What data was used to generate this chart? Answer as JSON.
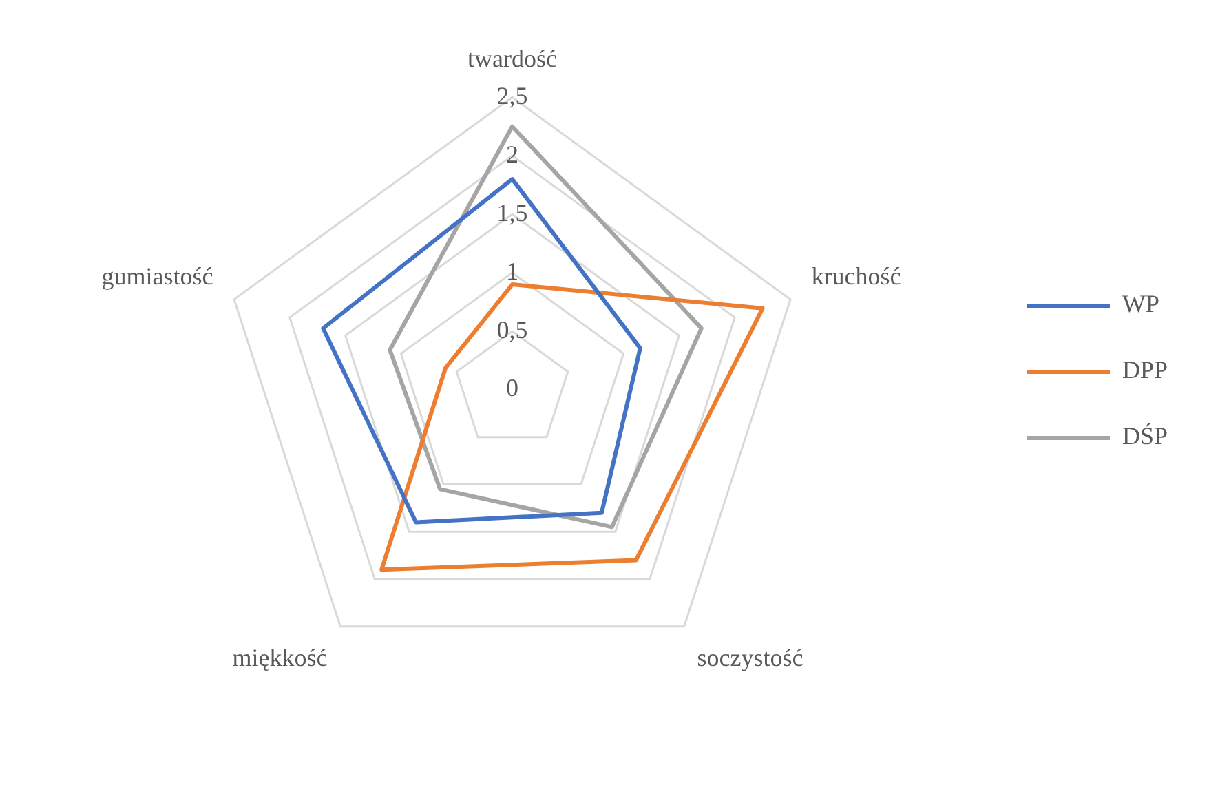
{
  "chart_data": {
    "type": "radar",
    "categories": [
      "twardość",
      "kruchość",
      "soczystość",
      "miękkość",
      "gumiastość"
    ],
    "series": [
      {
        "name": "WP",
        "color": "#4472c4",
        "values": [
          1.8,
          1.15,
          1.3,
          1.4,
          1.7
        ]
      },
      {
        "name": "DPP",
        "color": "#ed7d31",
        "values": [
          0.9,
          2.25,
          1.8,
          1.9,
          0.6
        ]
      },
      {
        "name": "DŚP",
        "color": "#a5a5a5",
        "values": [
          2.25,
          1.7,
          1.45,
          1.05,
          1.1
        ]
      }
    ],
    "ylim": [
      0,
      2.5
    ],
    "yticks": [
      0,
      {
        "value": 0.5,
        "label": "0,5"
      },
      1,
      {
        "value": 1.5,
        "label": "1,5"
      },
      2,
      {
        "value": 2.5,
        "label": "2,5"
      }
    ],
    "grid": true,
    "legend": "right",
    "marker": "none"
  }
}
